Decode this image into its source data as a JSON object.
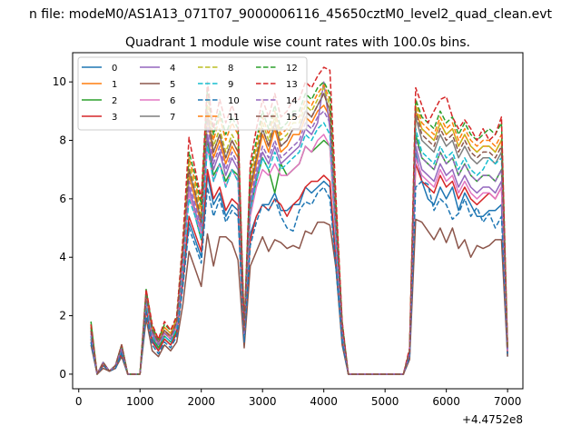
{
  "figure": {
    "suptitle": "n file: modeM0/AS1A13_071T07_9000006116_45650cztM0_level2_quad_clean.evt"
  },
  "chart_data": {
    "type": "line",
    "title": "Quadrant 1 module wise count rates with 100.0s bins.",
    "xlabel": "",
    "ylabel": "",
    "x_offset_label": "+4.4752e8",
    "xlim": [
      -100,
      7250
    ],
    "ylim": [
      -0.5,
      11.0
    ],
    "xticks": [
      0,
      1000,
      2000,
      3000,
      4000,
      5000,
      6000,
      7000
    ],
    "yticks": [
      0,
      2,
      4,
      6,
      8,
      10
    ],
    "grid": false,
    "legend": {
      "placement": "top-left",
      "columns": 4
    },
    "colors": [
      "#1f77b4",
      "#ff7f0e",
      "#2ca02c",
      "#d62728",
      "#9467bd",
      "#8c564b",
      "#e377c2",
      "#7f7f7f",
      "#bcbd22",
      "#17becf",
      "#1f77b4",
      "#ff7f0e",
      "#2ca02c",
      "#d62728",
      "#9467bd",
      "#8c564b"
    ],
    "x": [
      200,
      300,
      400,
      500,
      600,
      700,
      800,
      900,
      1000,
      1100,
      1200,
      1300,
      1400,
      1500,
      1600,
      1700,
      1800,
      1900,
      2000,
      2100,
      2200,
      2300,
      2400,
      2500,
      2600,
      2700,
      2800,
      2900,
      3000,
      3100,
      3200,
      3300,
      3400,
      3500,
      3600,
      3700,
      3800,
      3900,
      4000,
      4100,
      4200,
      4300,
      4400,
      4500,
      4600,
      4700,
      4800,
      4900,
      5000,
      5100,
      5200,
      5300,
      5400,
      5500,
      5600,
      5700,
      5800,
      5900,
      6000,
      6100,
      6200,
      6300,
      6400,
      6500,
      6600,
      6700,
      6800,
      6900,
      7000
    ],
    "series": [
      {
        "name": "0",
        "values": [
          1.1,
          0.0,
          0.4,
          0.1,
          0.2,
          0.8,
          0.0,
          0.0,
          0.0,
          2.4,
          1.2,
          0.8,
          1.2,
          1.0,
          1.4,
          3.2,
          5.2,
          4.6,
          4.0,
          6.8,
          5.8,
          6.2,
          5.4,
          5.8,
          5.6,
          1.2,
          4.8,
          5.4,
          5.8,
          5.8,
          6.2,
          5.6,
          5.6,
          5.8,
          5.8,
          6.4,
          6.2,
          6.4,
          6.6,
          6.4,
          3.6,
          1.2,
          0.0,
          0.0,
          0.0,
          0.0,
          0.0,
          0.0,
          0.0,
          0.0,
          0.0,
          0.0,
          0.6,
          7.6,
          6.6,
          6.0,
          5.8,
          6.4,
          6.0,
          6.4,
          5.6,
          6.2,
          5.8,
          5.4,
          5.4,
          5.6,
          5.6,
          5.8,
          0.6
        ]
      },
      {
        "name": "1",
        "values": [
          1.7,
          0.0,
          0.3,
          0.1,
          0.3,
          0.9,
          0.0,
          0.0,
          0.0,
          2.6,
          1.5,
          1.0,
          1.5,
          1.2,
          1.7,
          4.0,
          6.8,
          6.0,
          5.0,
          8.8,
          7.4,
          8.0,
          7.2,
          7.8,
          7.4,
          1.4,
          6.2,
          7.2,
          8.2,
          7.6,
          8.4,
          7.6,
          7.8,
          8.2,
          8.2,
          8.8,
          8.6,
          9.0,
          9.2,
          8.8,
          5.0,
          1.6,
          0.0,
          0.0,
          0.0,
          0.0,
          0.0,
          0.0,
          0.0,
          0.0,
          0.0,
          0.0,
          0.8,
          9.0,
          8.4,
          8.2,
          8.0,
          8.6,
          8.2,
          8.4,
          7.8,
          8.2,
          7.8,
          7.6,
          7.8,
          7.8,
          7.6,
          8.0,
          0.9
        ]
      },
      {
        "name": "2",
        "values": [
          1.8,
          0.0,
          0.3,
          0.1,
          0.3,
          0.9,
          0.0,
          0.0,
          0.0,
          2.3,
          1.3,
          0.9,
          1.3,
          1.1,
          1.5,
          3.6,
          6.2,
          5.4,
          4.6,
          8.0,
          6.8,
          7.2,
          6.6,
          7.0,
          6.8,
          1.3,
          5.6,
          6.6,
          7.4,
          7.0,
          6.2,
          7.2,
          6.8,
          7.0,
          7.2,
          7.8,
          7.6,
          7.8,
          8.0,
          7.8,
          4.4,
          1.4,
          0.0,
          0.0,
          0.0,
          0.0,
          0.0,
          0.0,
          0.0,
          0.0,
          0.0,
          0.0,
          0.7,
          8.2,
          7.4,
          7.2,
          7.0,
          7.6,
          7.2,
          7.4,
          6.8,
          7.2,
          6.8,
          6.6,
          6.8,
          6.8,
          6.6,
          7.0,
          0.8
        ]
      },
      {
        "name": "3",
        "values": [
          1.2,
          0.0,
          0.3,
          0.1,
          0.2,
          0.7,
          0.0,
          0.0,
          0.0,
          2.2,
          1.1,
          0.8,
          1.2,
          1.0,
          1.4,
          3.2,
          5.4,
          4.8,
          4.2,
          7.0,
          6.0,
          6.4,
          5.6,
          6.0,
          5.8,
          1.1,
          4.6,
          5.4,
          5.8,
          5.6,
          6.0,
          5.8,
          5.4,
          5.8,
          6.0,
          6.4,
          6.6,
          6.6,
          6.8,
          6.6,
          3.8,
          1.2,
          0.0,
          0.0,
          0.0,
          0.0,
          0.0,
          0.0,
          0.0,
          0.0,
          0.0,
          0.0,
          0.6,
          7.2,
          6.6,
          6.4,
          6.2,
          6.8,
          6.4,
          6.6,
          6.0,
          6.4,
          6.0,
          5.8,
          6.0,
          6.2,
          6.0,
          6.4,
          0.7
        ]
      },
      {
        "name": "4",
        "values": [
          1.3,
          0.0,
          0.4,
          0.1,
          0.3,
          0.9,
          0.0,
          0.0,
          0.0,
          2.6,
          1.4,
          1.0,
          1.4,
          1.2,
          1.6,
          3.8,
          6.4,
          5.6,
          4.8,
          8.2,
          7.0,
          7.6,
          6.8,
          7.4,
          7.0,
          1.3,
          5.8,
          6.8,
          7.6,
          7.2,
          7.8,
          7.2,
          7.4,
          7.6,
          7.8,
          8.4,
          8.2,
          8.6,
          10.0,
          8.4,
          4.6,
          1.5,
          0.0,
          0.0,
          0.0,
          0.0,
          0.0,
          0.0,
          0.0,
          0.0,
          0.0,
          0.0,
          0.7,
          7.8,
          7.0,
          6.8,
          6.6,
          7.2,
          6.8,
          7.0,
          6.4,
          6.8,
          6.4,
          6.2,
          6.4,
          6.4,
          6.2,
          6.6,
          0.8
        ]
      },
      {
        "name": "5",
        "values": [
          1.0,
          0.0,
          0.2,
          0.1,
          0.2,
          0.6,
          0.0,
          0.0,
          0.0,
          1.9,
          0.8,
          0.6,
          1.0,
          0.8,
          1.1,
          2.4,
          4.2,
          3.6,
          3.0,
          4.8,
          3.7,
          4.7,
          4.7,
          4.5,
          3.9,
          0.9,
          3.7,
          4.2,
          4.7,
          4.2,
          4.6,
          4.5,
          4.3,
          4.4,
          4.3,
          4.9,
          4.8,
          5.2,
          5.2,
          5.1,
          3.6,
          1.0,
          0.0,
          0.0,
          0.0,
          0.0,
          0.0,
          0.0,
          0.0,
          0.0,
          0.0,
          0.0,
          0.5,
          5.3,
          5.2,
          4.9,
          4.6,
          5.0,
          4.5,
          5.0,
          4.3,
          4.6,
          4.0,
          4.4,
          4.3,
          4.4,
          4.6,
          4.6,
          0.6
        ]
      },
      {
        "name": "6",
        "values": [
          1.4,
          0.0,
          0.4,
          0.1,
          0.3,
          0.9,
          0.0,
          0.0,
          0.0,
          2.5,
          1.3,
          1.0,
          1.4,
          1.2,
          1.6,
          3.6,
          6.2,
          5.4,
          4.8,
          7.8,
          6.6,
          7.2,
          6.4,
          7.0,
          6.6,
          1.3,
          5.4,
          6.4,
          7.0,
          6.8,
          7.2,
          6.8,
          6.8,
          7.0,
          7.2,
          7.8,
          7.6,
          8.0,
          8.2,
          7.8,
          4.4,
          1.4,
          0.0,
          0.0,
          0.0,
          0.0,
          0.0,
          0.0,
          0.0,
          0.0,
          0.0,
          0.0,
          0.7,
          7.4,
          6.8,
          6.6,
          6.4,
          7.0,
          6.6,
          6.8,
          6.2,
          6.6,
          6.2,
          6.0,
          6.2,
          6.2,
          6.0,
          6.4,
          0.8
        ]
      },
      {
        "name": "7",
        "values": [
          1.5,
          0.0,
          0.4,
          0.1,
          0.3,
          1.0,
          0.0,
          0.0,
          0.0,
          2.7,
          1.5,
          1.1,
          1.5,
          1.3,
          1.8,
          4.2,
          7.0,
          6.2,
          5.2,
          9.0,
          7.6,
          8.2,
          7.4,
          8.0,
          7.6,
          1.5,
          6.4,
          7.4,
          8.4,
          7.8,
          8.6,
          7.8,
          8.0,
          8.4,
          8.4,
          9.0,
          8.8,
          9.2,
          9.6,
          9.0,
          5.2,
          1.6,
          0.0,
          0.0,
          0.0,
          0.0,
          0.0,
          0.0,
          0.0,
          0.0,
          0.0,
          0.0,
          0.8,
          8.8,
          8.0,
          7.8,
          7.6,
          8.2,
          7.8,
          8.0,
          7.4,
          7.8,
          7.4,
          7.2,
          7.4,
          7.4,
          7.2,
          7.6,
          0.9
        ]
      },
      {
        "name": "8",
        "values": [
          1.6,
          0.0,
          0.4,
          0.1,
          0.3,
          1.0,
          0.0,
          0.0,
          0.0,
          2.8,
          1.6,
          1.2,
          1.6,
          1.4,
          1.9,
          4.4,
          7.2,
          6.4,
          5.4,
          9.2,
          7.8,
          8.4,
          7.6,
          8.2,
          7.8,
          1.5,
          6.6,
          7.6,
          8.6,
          8.0,
          8.8,
          8.0,
          8.2,
          8.6,
          8.6,
          9.2,
          9.0,
          9.4,
          9.8,
          9.2,
          5.4,
          1.7,
          0.0,
          0.0,
          0.0,
          0.0,
          0.0,
          0.0,
          0.0,
          0.0,
          0.0,
          0.0,
          0.8,
          9.2,
          8.4,
          8.2,
          8.0,
          8.6,
          8.2,
          8.4,
          7.8,
          8.2,
          7.8,
          7.6,
          7.8,
          7.8,
          7.6,
          8.0,
          0.9
        ]
      },
      {
        "name": "9",
        "values": [
          1.3,
          0.0,
          0.4,
          0.1,
          0.3,
          0.9,
          0.0,
          0.0,
          0.0,
          2.4,
          1.3,
          1.0,
          1.3,
          1.1,
          1.6,
          3.6,
          6.0,
          5.4,
          4.6,
          7.8,
          6.6,
          7.2,
          6.4,
          7.0,
          6.6,
          1.3,
          5.6,
          6.6,
          7.4,
          7.0,
          7.6,
          7.0,
          7.2,
          7.4,
          7.6,
          8.2,
          8.0,
          8.4,
          8.6,
          8.2,
          4.6,
          1.4,
          0.0,
          0.0,
          0.0,
          0.0,
          0.0,
          0.0,
          0.0,
          0.0,
          0.0,
          0.0,
          0.7,
          8.4,
          7.6,
          7.4,
          7.2,
          7.8,
          7.4,
          7.6,
          7.0,
          7.4,
          7.0,
          6.8,
          7.0,
          7.4,
          7.2,
          7.4,
          0.8
        ]
      },
      {
        "name": "10",
        "values": [
          1.1,
          0.0,
          0.3,
          0.1,
          0.2,
          0.7,
          0.0,
          0.0,
          0.0,
          2.1,
          1.0,
          0.7,
          1.1,
          0.9,
          1.3,
          3.0,
          5.0,
          4.4,
          3.8,
          6.4,
          5.4,
          6.0,
          5.2,
          5.6,
          5.4,
          1.1,
          4.4,
          5.2,
          5.8,
          5.6,
          6.0,
          5.4,
          5.0,
          4.9,
          5.6,
          5.9,
          5.8,
          6.2,
          6.4,
          6.0,
          3.6,
          1.1,
          0.0,
          0.0,
          0.0,
          0.0,
          0.0,
          0.0,
          0.0,
          0.0,
          0.0,
          0.0,
          0.6,
          6.4,
          6.6,
          6.5,
          5.6,
          6.0,
          5.8,
          5.3,
          5.5,
          6.0,
          5.4,
          5.7,
          5.2,
          5.5,
          5.0,
          5.4,
          0.7
        ]
      },
      {
        "name": "11",
        "values": [
          1.5,
          0.0,
          0.4,
          0.1,
          0.3,
          1.0,
          0.0,
          0.0,
          0.0,
          2.8,
          1.6,
          1.2,
          1.6,
          1.4,
          1.9,
          4.4,
          7.4,
          6.6,
          5.6,
          9.6,
          8.0,
          8.8,
          8.0,
          8.6,
          8.2,
          1.5,
          6.8,
          7.8,
          8.8,
          8.2,
          9.0,
          8.2,
          8.4,
          8.8,
          8.8,
          9.4,
          9.2,
          9.6,
          9.9,
          9.4,
          5.6,
          1.7,
          0.0,
          0.0,
          0.0,
          0.0,
          0.0,
          0.0,
          0.0,
          0.0,
          0.0,
          0.0,
          0.8,
          9.4,
          8.6,
          8.4,
          8.2,
          8.8,
          8.4,
          8.6,
          8.0,
          8.4,
          8.0,
          7.8,
          8.0,
          8.0,
          7.8,
          8.2,
          0.9
        ]
      },
      {
        "name": "12",
        "values": [
          1.6,
          0.0,
          0.4,
          0.1,
          0.3,
          1.0,
          0.0,
          0.0,
          0.0,
          2.9,
          1.6,
          1.2,
          1.7,
          1.5,
          2.0,
          4.6,
          7.6,
          6.8,
          5.8,
          9.8,
          8.2,
          9.0,
          8.2,
          8.8,
          8.4,
          1.6,
          7.0,
          8.0,
          9.0,
          8.4,
          9.2,
          8.4,
          8.6,
          9.0,
          9.0,
          9.6,
          9.4,
          9.8,
          10.0,
          9.6,
          5.8,
          1.8,
          0.0,
          0.0,
          0.0,
          0.0,
          0.0,
          0.0,
          0.0,
          0.0,
          0.0,
          0.0,
          0.8,
          9.4,
          8.8,
          8.6,
          8.4,
          9.0,
          8.6,
          8.8,
          8.2,
          8.6,
          8.2,
          8.0,
          8.2,
          8.4,
          8.2,
          8.6,
          0.9
        ]
      },
      {
        "name": "13",
        "values": [
          1.7,
          0.0,
          0.4,
          0.1,
          0.3,
          1.0,
          0.0,
          0.0,
          0.0,
          2.9,
          1.7,
          1.2,
          1.8,
          1.5,
          2.0,
          4.6,
          8.1,
          7.0,
          6.0,
          10.0,
          8.4,
          9.4,
          8.6,
          9.2,
          8.6,
          1.6,
          7.2,
          8.4,
          9.4,
          8.8,
          9.6,
          8.8,
          9.0,
          9.4,
          9.4,
          10.0,
          9.8,
          10.2,
          10.5,
          10.4,
          6.0,
          1.8,
          0.0,
          0.0,
          0.0,
          0.0,
          0.0,
          0.0,
          0.0,
          0.0,
          0.0,
          0.0,
          0.9,
          9.8,
          9.2,
          8.6,
          9.0,
          9.4,
          9.5,
          8.8,
          8.4,
          8.7,
          8.4,
          8.0,
          8.4,
          8.0,
          8.2,
          8.8,
          1.0
        ]
      },
      {
        "name": "14",
        "values": [
          1.4,
          0.0,
          0.4,
          0.1,
          0.3,
          0.9,
          0.0,
          0.0,
          0.0,
          2.6,
          1.4,
          1.0,
          1.4,
          1.2,
          1.7,
          4.0,
          6.6,
          5.8,
          5.0,
          8.6,
          7.2,
          7.8,
          7.0,
          7.6,
          7.2,
          1.4,
          6.0,
          7.0,
          7.8,
          7.4,
          8.0,
          7.4,
          7.6,
          7.8,
          8.0,
          8.6,
          8.4,
          8.8,
          9.0,
          8.6,
          4.8,
          1.5,
          0.0,
          0.0,
          0.0,
          0.0,
          0.0,
          0.0,
          0.0,
          0.0,
          0.0,
          0.0,
          0.7,
          8.0,
          7.4,
          7.2,
          7.0,
          7.6,
          7.2,
          7.4,
          6.8,
          7.2,
          6.8,
          6.6,
          6.8,
          6.8,
          6.6,
          7.0,
          0.8
        ]
      },
      {
        "name": "15",
        "values": [
          1.5,
          0.0,
          0.4,
          0.1,
          0.3,
          1.0,
          0.0,
          0.0,
          0.0,
          2.7,
          1.5,
          1.1,
          1.5,
          1.3,
          1.8,
          4.2,
          7.0,
          6.2,
          5.2,
          9.0,
          7.6,
          8.2,
          7.4,
          8.0,
          7.6,
          1.5,
          6.4,
          7.4,
          8.4,
          7.8,
          8.6,
          7.8,
          8.0,
          8.4,
          8.4,
          9.0,
          8.8,
          9.2,
          9.6,
          9.0,
          5.2,
          1.6,
          0.0,
          0.0,
          0.0,
          0.0,
          0.0,
          0.0,
          0.0,
          0.0,
          0.0,
          0.0,
          0.8,
          9.0,
          8.2,
          8.0,
          7.8,
          8.4,
          8.0,
          8.2,
          7.6,
          8.0,
          7.6,
          7.4,
          7.6,
          7.6,
          7.4,
          7.8,
          0.9
        ]
      }
    ]
  }
}
